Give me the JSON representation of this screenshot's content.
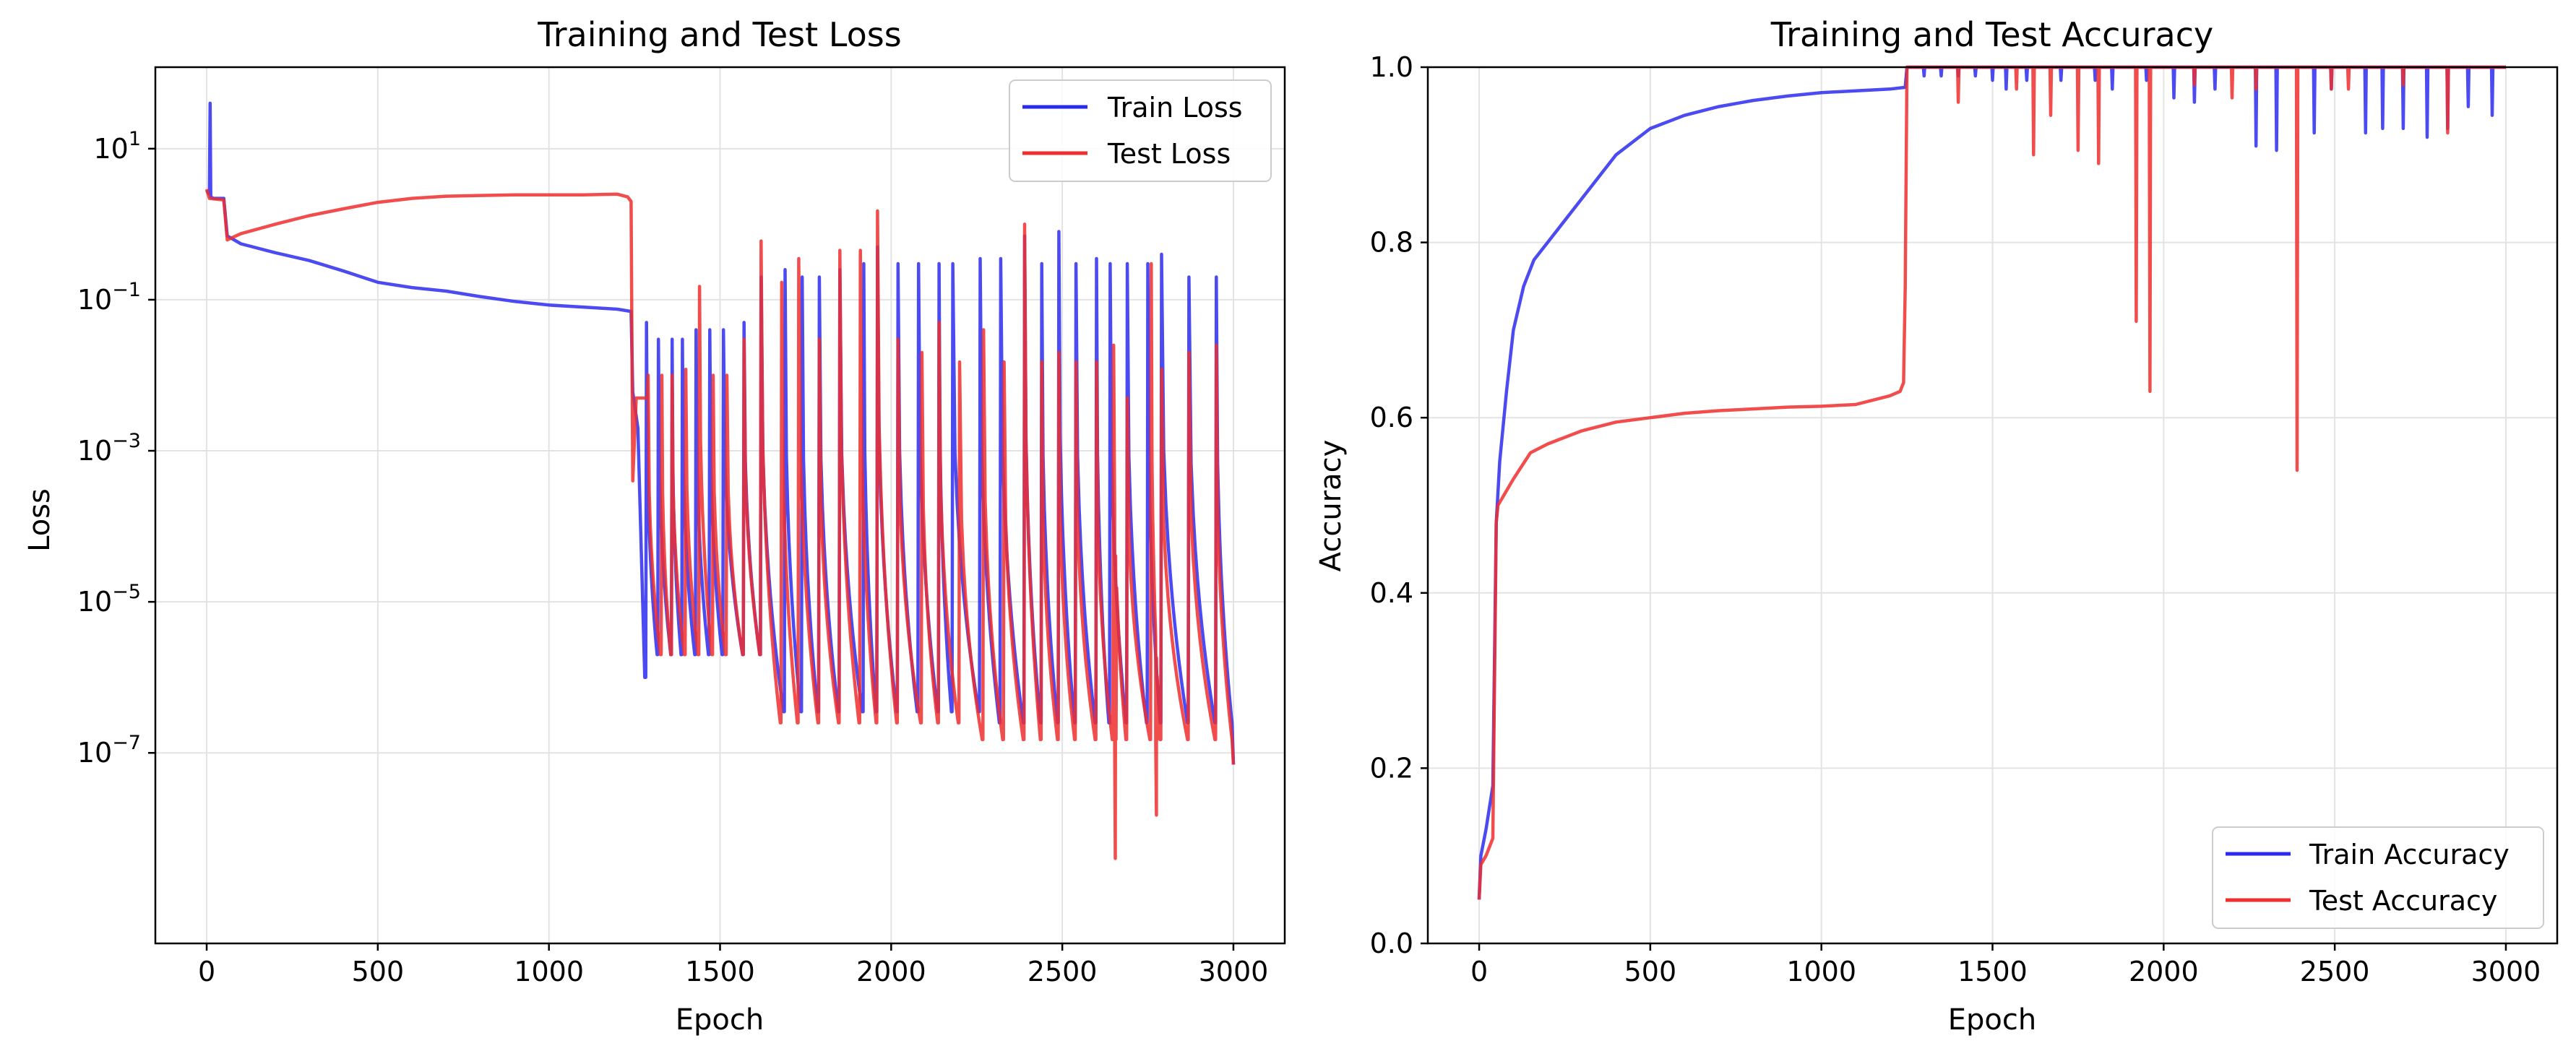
{
  "colors": {
    "train": "#2b2bef",
    "test": "#f02e2e",
    "overlap": "#c8154b",
    "grid": "#e3e3e3"
  },
  "chart_data": [
    {
      "type": "line",
      "title": "Training and Test Loss",
      "xlabel": "Epoch",
      "ylabel": "Loss",
      "yscale": "log",
      "xlim": [
        -150,
        3150
      ],
      "ylim": [
        3e-10,
        120
      ],
      "x_ticks": [
        0,
        500,
        1000,
        1500,
        2000,
        2500,
        3000
      ],
      "x_tick_labels": [
        "0",
        "500",
        "1000",
        "1500",
        "2000",
        "2500",
        "3000"
      ],
      "y_ticks": [
        10,
        0.1,
        0.001,
        1e-05,
        1e-07
      ],
      "y_tick_labels": [
        {
          "base": "10",
          "exp": "1"
        },
        {
          "base": "10",
          "exp": "−1"
        },
        {
          "base": "10",
          "exp": "−3"
        },
        {
          "base": "10",
          "exp": "−5"
        },
        {
          "base": "10",
          "exp": "−7"
        }
      ],
      "grid": true,
      "legend_position": "top-right",
      "series": [
        {
          "name": "Train Loss",
          "color": "train",
          "x": [
            0,
            8,
            10,
            12,
            20,
            50,
            60,
            100,
            200,
            300,
            400,
            500,
            600,
            700,
            800,
            900,
            1000,
            1100,
            1200,
            1240,
            1245,
            1260,
            1280
          ],
          "y": [
            2.8,
            2.5,
            40,
            2.3,
            2.2,
            2.2,
            0.7,
            0.55,
            0.42,
            0.33,
            0.24,
            0.17,
            0.145,
            0.13,
            0.11,
            0.095,
            0.085,
            0.08,
            0.075,
            0.07,
            0.006,
            0.002,
            1e-06
          ],
          "spikes": [
            {
              "x": 1285,
              "y": 0.05
            },
            {
              "x": 1320,
              "y": 0.03
            },
            {
              "x": 1360,
              "y": 0.03
            },
            {
              "x": 1390,
              "y": 0.03
            },
            {
              "x": 1430,
              "y": 0.04
            },
            {
              "x": 1470,
              "y": 0.04
            },
            {
              "x": 1510,
              "y": 0.04
            },
            {
              "x": 1570,
              "y": 0.05
            },
            {
              "x": 1620,
              "y": 0.2
            },
            {
              "x": 1690,
              "y": 0.25
            },
            {
              "x": 1740,
              "y": 0.2
            },
            {
              "x": 1790,
              "y": 0.2
            },
            {
              "x": 1850,
              "y": 0.25
            },
            {
              "x": 1920,
              "y": 0.3
            },
            {
              "x": 1960,
              "y": 0.5
            },
            {
              "x": 2020,
              "y": 0.3
            },
            {
              "x": 2080,
              "y": 0.3
            },
            {
              "x": 2140,
              "y": 0.3
            },
            {
              "x": 2180,
              "y": 0.3
            },
            {
              "x": 2260,
              "y": 0.35
            },
            {
              "x": 2320,
              "y": 0.35
            },
            {
              "x": 2390,
              "y": 0.7
            },
            {
              "x": 2440,
              "y": 0.3
            },
            {
              "x": 2490,
              "y": 0.8
            },
            {
              "x": 2540,
              "y": 0.3
            },
            {
              "x": 2600,
              "y": 0.35
            },
            {
              "x": 2640,
              "y": 0.3
            },
            {
              "x": 2690,
              "y": 0.3
            },
            {
              "x": 2750,
              "y": 0.3
            },
            {
              "x": 2790,
              "y": 0.4
            },
            {
              "x": 2870,
              "y": 0.2
            },
            {
              "x": 2950,
              "y": 0.2
            }
          ]
        },
        {
          "name": "Test Loss",
          "color": "test",
          "x": [
            0,
            8,
            50,
            60,
            100,
            200,
            300,
            400,
            500,
            600,
            700,
            800,
            900,
            1000,
            1100,
            1200,
            1230,
            1240,
            1245,
            1255
          ],
          "y": [
            2.9,
            2.2,
            2.1,
            0.62,
            0.75,
            1.0,
            1.3,
            1.6,
            1.95,
            2.2,
            2.35,
            2.4,
            2.45,
            2.45,
            2.45,
            2.5,
            2.3,
            2.0,
            0.0004,
            0.005
          ],
          "spikes": [
            {
              "x": 1290,
              "y": 0.01
            },
            {
              "x": 1330,
              "y": 0.01
            },
            {
              "x": 1360,
              "y": 0.01
            },
            {
              "x": 1400,
              "y": 0.012
            },
            {
              "x": 1440,
              "y": 0.15
            },
            {
              "x": 1480,
              "y": 0.01
            },
            {
              "x": 1520,
              "y": 0.01
            },
            {
              "x": 1570,
              "y": 0.03
            },
            {
              "x": 1620,
              "y": 0.6
            },
            {
              "x": 1680,
              "y": 0.17
            },
            {
              "x": 1730,
              "y": 0.35
            },
            {
              "x": 1790,
              "y": 0.03
            },
            {
              "x": 1850,
              "y": 0.45
            },
            {
              "x": 1910,
              "y": 0.45
            },
            {
              "x": 1960,
              "y": 1.5
            },
            {
              "x": 2020,
              "y": 0.03
            },
            {
              "x": 2090,
              "y": 0.02
            },
            {
              "x": 2140,
              "y": 0.05
            },
            {
              "x": 2200,
              "y": 0.015
            },
            {
              "x": 2270,
              "y": 0.04
            },
            {
              "x": 2330,
              "y": 0.015
            },
            {
              "x": 2390,
              "y": 1.0
            },
            {
              "x": 2440,
              "y": 0.015
            },
            {
              "x": 2490,
              "y": 0.02
            },
            {
              "x": 2540,
              "y": 0.015
            },
            {
              "x": 2600,
              "y": 0.015
            },
            {
              "x": 2650,
              "y": 0.025
            },
            {
              "x": 2690,
              "y": 0.005
            },
            {
              "x": 2760,
              "y": 0.3
            },
            {
              "x": 2790,
              "y": 0.012
            },
            {
              "x": 2870,
              "y": 0.02
            },
            {
              "x": 2950,
              "y": 0.025
            }
          ],
          "extra_dips": [
            {
              "x": 2655,
              "y": 4e-09
            },
            {
              "x": 2775,
              "y": 1.5e-08
            }
          ]
        }
      ]
    },
    {
      "type": "line",
      "title": "Training and Test Accuracy",
      "xlabel": "Epoch",
      "ylabel": "Accuracy",
      "xlim": [
        -150,
        3150
      ],
      "ylim": [
        0,
        1
      ],
      "x_ticks": [
        0,
        500,
        1000,
        1500,
        2000,
        2500,
        3000
      ],
      "x_tick_labels": [
        "0",
        "500",
        "1000",
        "1500",
        "2000",
        "2500",
        "3000"
      ],
      "y_ticks": [
        0,
        0.2,
        0.4,
        0.6,
        0.8,
        1.0
      ],
      "y_tick_labels": [
        "0.0",
        "0.2",
        "0.4",
        "0.6",
        "0.8",
        "1.0"
      ],
      "grid": true,
      "legend_position": "bottom-right",
      "series": [
        {
          "name": "Train Accuracy",
          "color": "train",
          "x": [
            0,
            5,
            20,
            40,
            50,
            60,
            80,
            100,
            130,
            160,
            200,
            300,
            400,
            500,
            600,
            700,
            800,
            900,
            1000,
            1100,
            1200,
            1245,
            1250
          ],
          "y": [
            0.05,
            0.1,
            0.13,
            0.18,
            0.48,
            0.55,
            0.63,
            0.7,
            0.75,
            0.78,
            0.8,
            0.85,
            0.9,
            0.93,
            0.945,
            0.955,
            0.962,
            0.967,
            0.971,
            0.973,
            0.975,
            0.977,
            1.0
          ],
          "dips": [
            {
              "x": 1300,
              "y": 0.99
            },
            {
              "x": 1350,
              "y": 0.99
            },
            {
              "x": 1400,
              "y": 0.99
            },
            {
              "x": 1450,
              "y": 0.99
            },
            {
              "x": 1500,
              "y": 0.985
            },
            {
              "x": 1540,
              "y": 0.975
            },
            {
              "x": 1600,
              "y": 0.985
            },
            {
              "x": 1700,
              "y": 0.985
            },
            {
              "x": 1800,
              "y": 0.985
            },
            {
              "x": 1850,
              "y": 0.975
            },
            {
              "x": 1950,
              "y": 0.985
            },
            {
              "x": 2030,
              "y": 0.965
            },
            {
              "x": 2090,
              "y": 0.96
            },
            {
              "x": 2150,
              "y": 0.975
            },
            {
              "x": 2270,
              "y": 0.91
            },
            {
              "x": 2330,
              "y": 0.905
            },
            {
              "x": 2440,
              "y": 0.925
            },
            {
              "x": 2490,
              "y": 0.975
            },
            {
              "x": 2590,
              "y": 0.925
            },
            {
              "x": 2640,
              "y": 0.93
            },
            {
              "x": 2700,
              "y": 0.93
            },
            {
              "x": 2770,
              "y": 0.92
            },
            {
              "x": 2830,
              "y": 0.93
            },
            {
              "x": 2890,
              "y": 0.955
            },
            {
              "x": 2960,
              "y": 0.945
            }
          ]
        },
        {
          "name": "Test Accuracy",
          "color": "test",
          "x": [
            0,
            5,
            20,
            40,
            50,
            55,
            70,
            100,
            150,
            200,
            300,
            400,
            500,
            600,
            700,
            800,
            900,
            1000,
            1100,
            1200,
            1230,
            1240,
            1245,
            1250
          ],
          "y": [
            0.05,
            0.09,
            0.1,
            0.12,
            0.48,
            0.5,
            0.51,
            0.53,
            0.56,
            0.57,
            0.585,
            0.595,
            0.6,
            0.605,
            0.608,
            0.61,
            0.612,
            0.613,
            0.615,
            0.625,
            0.63,
            0.64,
            0.75,
            1.0
          ],
          "dips": [
            {
              "x": 1400,
              "y": 0.96
            },
            {
              "x": 1570,
              "y": 0.975
            },
            {
              "x": 1620,
              "y": 0.9
            },
            {
              "x": 1670,
              "y": 0.945
            },
            {
              "x": 1750,
              "y": 0.905
            },
            {
              "x": 1810,
              "y": 0.89
            },
            {
              "x": 1920,
              "y": 0.71
            },
            {
              "x": 1960,
              "y": 0.63
            },
            {
              "x": 2090,
              "y": 0.98
            },
            {
              "x": 2200,
              "y": 0.965
            },
            {
              "x": 2270,
              "y": 0.975
            },
            {
              "x": 2390,
              "y": 0.54
            },
            {
              "x": 2490,
              "y": 0.975
            },
            {
              "x": 2540,
              "y": 0.975
            },
            {
              "x": 2700,
              "y": 0.98
            },
            {
              "x": 2830,
              "y": 0.925
            }
          ]
        }
      ]
    }
  ]
}
